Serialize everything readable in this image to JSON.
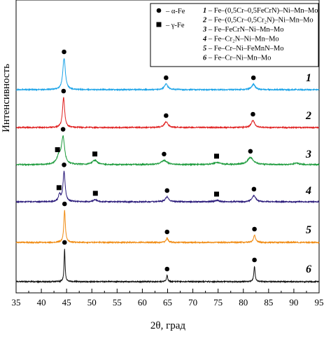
{
  "chart_data": {
    "type": "line",
    "xlabel": "2θ, град",
    "ylabel": "Интенсивность",
    "xlim": [
      35,
      95
    ],
    "x_ticks": [
      "35",
      "40",
      "45",
      "50",
      "55",
      "60",
      "65",
      "70",
      "75",
      "80",
      "85",
      "90",
      "95"
    ],
    "grid": false,
    "legend_position": "top-right",
    "phase_legend": [
      {
        "marker": "circle",
        "label": "– α-Fe"
      },
      {
        "marker": "square",
        "label": "– γ-Fe"
      }
    ],
    "sample_legend": [
      {
        "num": "1",
        "text": "– Fe–(0,5Cr–0,5FeCrN)–Ni–Mn–Mo"
      },
      {
        "num": "2",
        "text": "– Fe–(0,5Cr–0,5Cr₂N)–Ni–Mn–Mo"
      },
      {
        "num": "3",
        "text": "– Fe–FeCrN–Ni–Mn–Mo"
      },
      {
        "num": "4",
        "text": "– Fe–Cr₂N–Ni–Mn–Mo"
      },
      {
        "num": "5",
        "text": "– Fe–Cr–Ni–FeMnN–Mo"
      },
      {
        "num": "6",
        "text": "– Fe–Cr–Ni–Mn–Mo"
      }
    ],
    "series": [
      {
        "name": "1",
        "color": "#1aa3e8",
        "baseline": 0.0,
        "peaks": [
          {
            "x": 44.5,
            "h": 45,
            "w": 0.3
          },
          {
            "x": 64.7,
            "h": 8,
            "w": 0.4
          },
          {
            "x": 82.0,
            "h": 8,
            "w": 0.4
          }
        ],
        "markers": [
          {
            "x": 44.5,
            "type": "alpha"
          },
          {
            "x": 64.7,
            "type": "alpha"
          },
          {
            "x": 82.0,
            "type": "alpha"
          }
        ]
      },
      {
        "name": "2",
        "color": "#e02020",
        "baseline": 0.0,
        "peaks": [
          {
            "x": 44.4,
            "h": 43,
            "w": 0.25
          },
          {
            "x": 64.7,
            "h": 8,
            "w": 0.45
          },
          {
            "x": 81.9,
            "h": 10,
            "w": 0.4
          }
        ],
        "markers": [
          {
            "x": 44.4,
            "type": "alpha"
          },
          {
            "x": 64.7,
            "type": "alpha"
          },
          {
            "x": 81.9,
            "type": "alpha"
          }
        ]
      },
      {
        "name": "3",
        "color": "#1a9a3a",
        "baseline": 0.0,
        "peaks": [
          {
            "x": 43.5,
            "h": 12,
            "w": 0.5
          },
          {
            "x": 44.3,
            "h": 38,
            "w": 0.35
          },
          {
            "x": 50.6,
            "h": 6,
            "w": 0.6
          },
          {
            "x": 64.3,
            "h": 6,
            "w": 0.7
          },
          {
            "x": 74.8,
            "h": 3,
            "w": 0.8
          },
          {
            "x": 81.4,
            "h": 10,
            "w": 0.7
          },
          {
            "x": 90.5,
            "h": 2,
            "w": 0.6
          }
        ],
        "markers": [
          {
            "x": 43.2,
            "type": "gamma"
          },
          {
            "x": 44.3,
            "type": "alpha"
          },
          {
            "x": 50.6,
            "type": "gamma"
          },
          {
            "x": 64.3,
            "type": "alpha"
          },
          {
            "x": 74.7,
            "type": "gamma"
          },
          {
            "x": 81.4,
            "type": "alpha"
          }
        ]
      },
      {
        "name": "4",
        "color": "#2a1a7a",
        "baseline": 0.0,
        "peaks": [
          {
            "x": 43.6,
            "h": 10,
            "w": 0.25
          },
          {
            "x": 44.5,
            "h": 43,
            "w": 0.25
          },
          {
            "x": 50.7,
            "h": 3,
            "w": 0.4
          },
          {
            "x": 64.9,
            "h": 7,
            "w": 0.4
          },
          {
            "x": 74.8,
            "h": 2,
            "w": 0.5
          },
          {
            "x": 82.1,
            "h": 9,
            "w": 0.4
          }
        ],
        "markers": [
          {
            "x": 43.5,
            "type": "gamma"
          },
          {
            "x": 44.5,
            "type": "alpha"
          },
          {
            "x": 50.7,
            "type": "gamma"
          },
          {
            "x": 64.9,
            "type": "alpha"
          },
          {
            "x": 74.7,
            "type": "gamma"
          },
          {
            "x": 82.1,
            "type": "alpha"
          }
        ]
      },
      {
        "name": "5",
        "color": "#f08a10",
        "baseline": 0.0,
        "peaks": [
          {
            "x": 44.6,
            "h": 46,
            "w": 0.18
          },
          {
            "x": 64.9,
            "h": 6,
            "w": 0.25
          },
          {
            "x": 82.2,
            "h": 10,
            "w": 0.25
          }
        ],
        "markers": [
          {
            "x": 44.6,
            "type": "alpha"
          },
          {
            "x": 64.9,
            "type": "alpha"
          },
          {
            "x": 82.2,
            "type": "alpha"
          }
        ]
      },
      {
        "name": "6",
        "color": "#111111",
        "baseline": 0.0,
        "peaks": [
          {
            "x": 44.6,
            "h": 47,
            "w": 0.12
          },
          {
            "x": 64.9,
            "h": 9,
            "w": 0.15
          },
          {
            "x": 82.2,
            "h": 22,
            "w": 0.15
          }
        ],
        "markers": [
          {
            "x": 44.6,
            "type": "alpha"
          },
          {
            "x": 64.9,
            "type": "alpha"
          },
          {
            "x": 82.2,
            "type": "alpha"
          }
        ]
      }
    ]
  }
}
